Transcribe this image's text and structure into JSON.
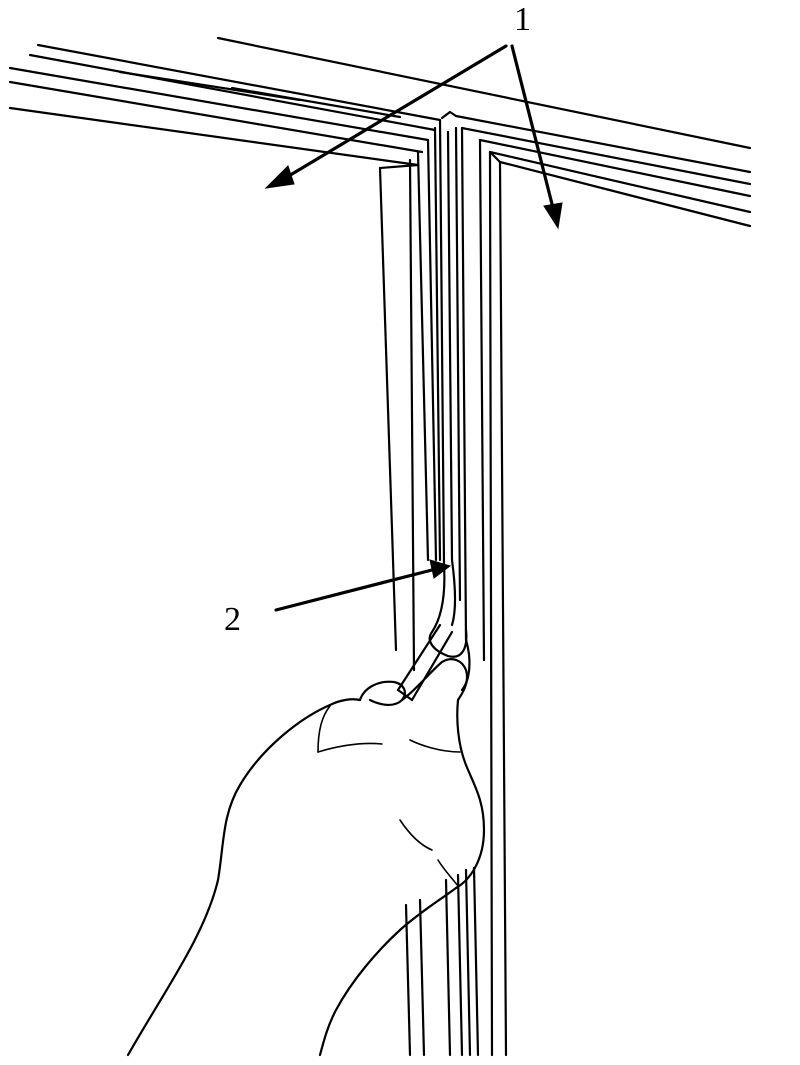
{
  "figure": {
    "callouts": [
      {
        "id": "1",
        "label": "1"
      },
      {
        "id": "2",
        "label": "2"
      }
    ],
    "colors": {
      "ink": "#000000",
      "background": "#ffffff"
    }
  }
}
